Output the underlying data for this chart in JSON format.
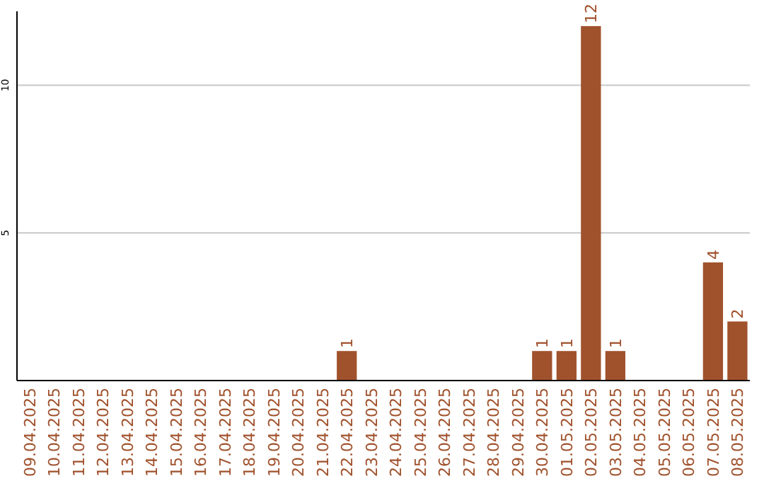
{
  "chart_data": {
    "type": "bar",
    "categories": [
      "09.04.2025",
      "10.04.2025",
      "11.04.2025",
      "12.04.2025",
      "13.04.2025",
      "14.04.2025",
      "15.04.2025",
      "16.04.2025",
      "17.04.2025",
      "18.04.2025",
      "19.04.2025",
      "20.04.2025",
      "21.04.2025",
      "22.04.2025",
      "23.04.2025",
      "24.04.2025",
      "25.04.2025",
      "26.04.2025",
      "27.04.2025",
      "28.04.2025",
      "29.04.2025",
      "30.04.2025",
      "01.05.2025",
      "02.05.2025",
      "03.05.2025",
      "04.05.2025",
      "05.05.2025",
      "06.05.2025",
      "07.05.2025",
      "08.05.2025"
    ],
    "values": [
      0,
      0,
      0,
      0,
      0,
      0,
      0,
      0,
      0,
      0,
      0,
      0,
      0,
      1,
      0,
      0,
      0,
      0,
      0,
      0,
      0,
      1,
      1,
      12,
      1,
      0,
      0,
      0,
      4,
      2
    ],
    "value_labels": [
      null,
      null,
      null,
      null,
      null,
      null,
      null,
      null,
      null,
      null,
      null,
      null,
      null,
      "1",
      null,
      null,
      null,
      null,
      null,
      null,
      null,
      "1",
      "1",
      "12",
      "1",
      null,
      null,
      null,
      "4",
      "2"
    ],
    "color": "#a0522d",
    "ylim": [
      0,
      12.5
    ],
    "yticks": [
      5,
      10
    ],
    "grid": "y"
  }
}
